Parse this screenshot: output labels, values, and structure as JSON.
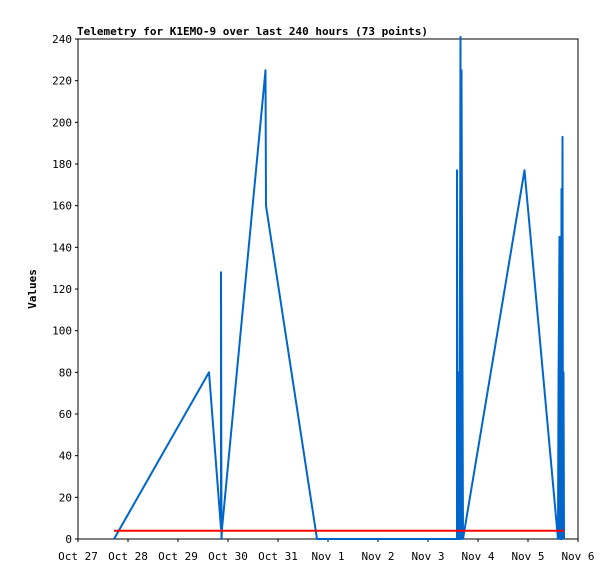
{
  "chart_data": {
    "type": "line",
    "title": "Telemetry for K1EMO-9 over last 240 hours (73 points)",
    "xlabel": "",
    "ylabel": "Values",
    "x_ticks": [
      "Oct 27",
      "Oct 28",
      "Oct 29",
      "Oct 30",
      "Oct 31",
      "Nov 1",
      "Nov 2",
      "Nov 3",
      "Nov 4",
      "Nov 5",
      "Nov 6"
    ],
    "y_ticks": [
      0,
      20,
      40,
      60,
      80,
      100,
      120,
      140,
      160,
      180,
      200,
      220,
      240
    ],
    "xlim": [
      0,
      10
    ],
    "ylim": [
      0,
      240
    ],
    "grid": false,
    "series": [
      {
        "color": "#0066cc",
        "points": [
          [
            0.72,
            0
          ],
          [
            2.62,
            80
          ],
          [
            2.86,
            5
          ],
          [
            2.86,
            128
          ],
          [
            2.87,
            0
          ],
          [
            2.88,
            5
          ],
          [
            3.75,
            225
          ],
          [
            3.76,
            160
          ],
          [
            4.78,
            0
          ],
          [
            7.58,
            0
          ],
          [
            7.58,
            177
          ],
          [
            7.59,
            5
          ],
          [
            7.6,
            80
          ],
          [
            7.61,
            0
          ],
          [
            7.62,
            32
          ],
          [
            7.63,
            0
          ],
          [
            7.65,
            241
          ],
          [
            7.66,
            0
          ],
          [
            7.67,
            225
          ],
          [
            7.7,
            0
          ],
          [
            8.93,
            177
          ],
          [
            9.6,
            0
          ],
          [
            9.61,
            72
          ],
          [
            9.63,
            145
          ],
          [
            9.64,
            0
          ],
          [
            9.65,
            120
          ],
          [
            9.66,
            0
          ],
          [
            9.67,
            168
          ],
          [
            9.68,
            0
          ],
          [
            9.69,
            193
          ],
          [
            9.7,
            10
          ],
          [
            9.71,
            80
          ],
          [
            9.72,
            0
          ]
        ]
      },
      {
        "color": "#ff0000",
        "points": [
          [
            0.72,
            4
          ],
          [
            9.72,
            4
          ]
        ]
      }
    ]
  }
}
